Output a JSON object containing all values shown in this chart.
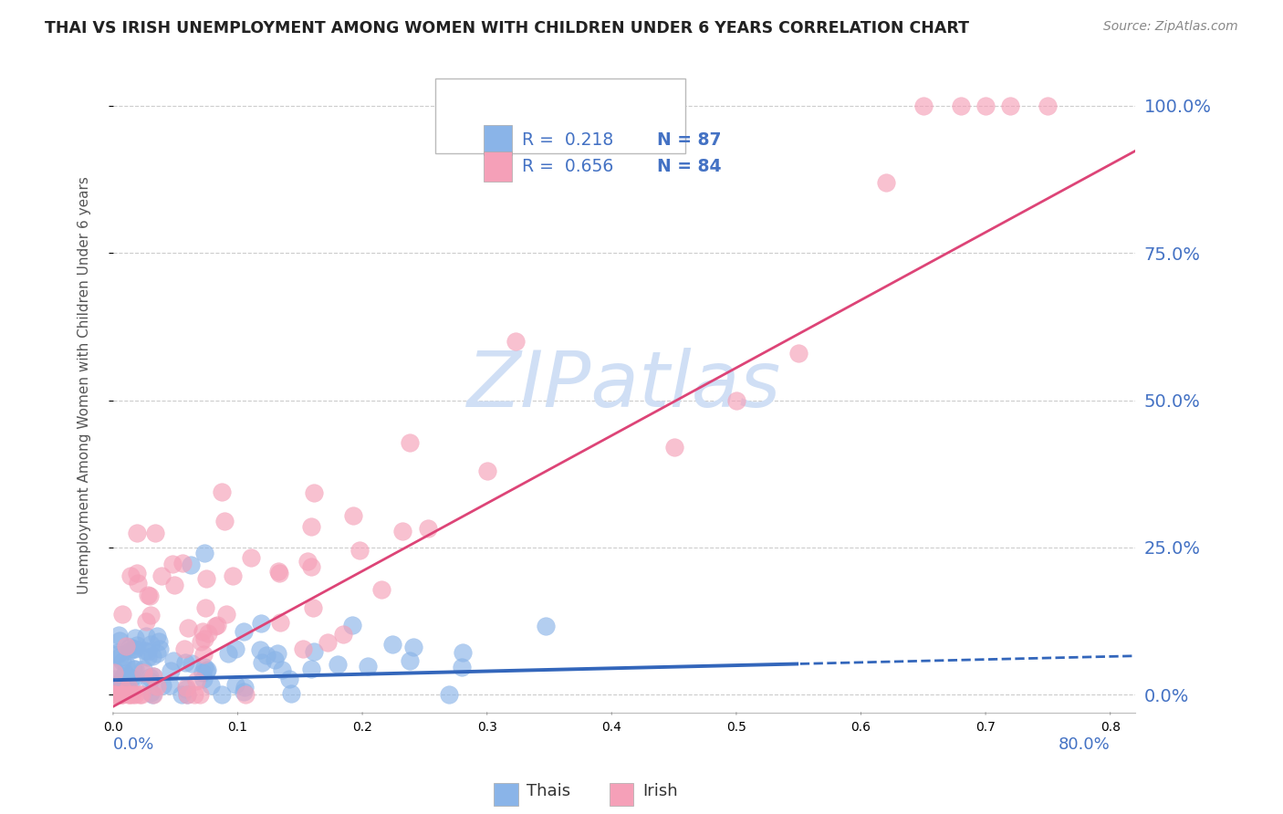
{
  "title": "THAI VS IRISH UNEMPLOYMENT AMONG WOMEN WITH CHILDREN UNDER 6 YEARS CORRELATION CHART",
  "source": "Source: ZipAtlas.com",
  "ylabel": "Unemployment Among Women with Children Under 6 years",
  "thai_color": "#8ab4e8",
  "thai_color_edge": "#6699cc",
  "irish_color": "#f5a0b8",
  "irish_color_edge": "#dd7799",
  "thai_line_color": "#3366bb",
  "irish_line_color": "#dd4477",
  "background_color": "#ffffff",
  "grid_color": "#cccccc",
  "watermark_color": "#d0dff5",
  "xlim": [
    0.0,
    0.82
  ],
  "ylim": [
    -0.03,
    1.08
  ],
  "y_ticks": [
    0.0,
    0.25,
    0.5,
    0.75,
    1.0
  ],
  "y_tick_labels": [
    "0.0%",
    "25.0%",
    "50.0%",
    "75.0%",
    "100.0%"
  ],
  "legend_thai_r": "R =  0.218",
  "legend_thai_n": "N = 87",
  "legend_irish_r": "R =  0.656",
  "legend_irish_n": "N = 84",
  "title_color": "#222222",
  "source_color": "#888888",
  "axis_label_color": "#4472c4",
  "text_color": "#333333"
}
